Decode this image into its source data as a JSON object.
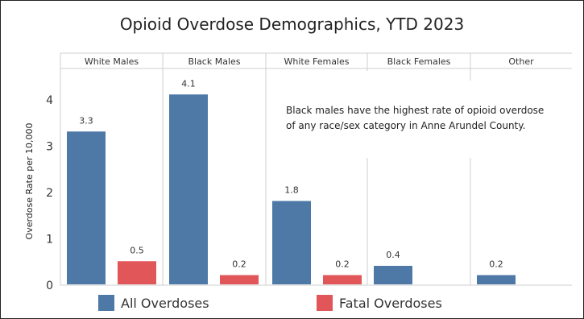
{
  "chart_data": {
    "type": "bar",
    "title": "Opioid Overdose Demographics, YTD 2023",
    "ylabel": "Overdose Rate per 10,000",
    "xlabel": "",
    "ylim": [
      0,
      4.5
    ],
    "yticks": [
      0,
      1,
      2,
      3,
      4
    ],
    "categories": [
      "White Males",
      "Black Males",
      "White Females",
      "Black Females",
      "Other"
    ],
    "series": [
      {
        "name": "All Overdoses",
        "color": "#4e79a7",
        "values": [
          3.3,
          4.1,
          1.8,
          0.4,
          0.2
        ]
      },
      {
        "name": "Fatal Overdoses",
        "color": "#e15759",
        "values": [
          0.5,
          0.2,
          0.2,
          null,
          null
        ]
      }
    ],
    "annotation": [
      "Black males have the highest rate of opioid overdose",
      "of any race/sex category in Anne Arundel County."
    ],
    "grid": false,
    "legend_position": "bottom"
  }
}
